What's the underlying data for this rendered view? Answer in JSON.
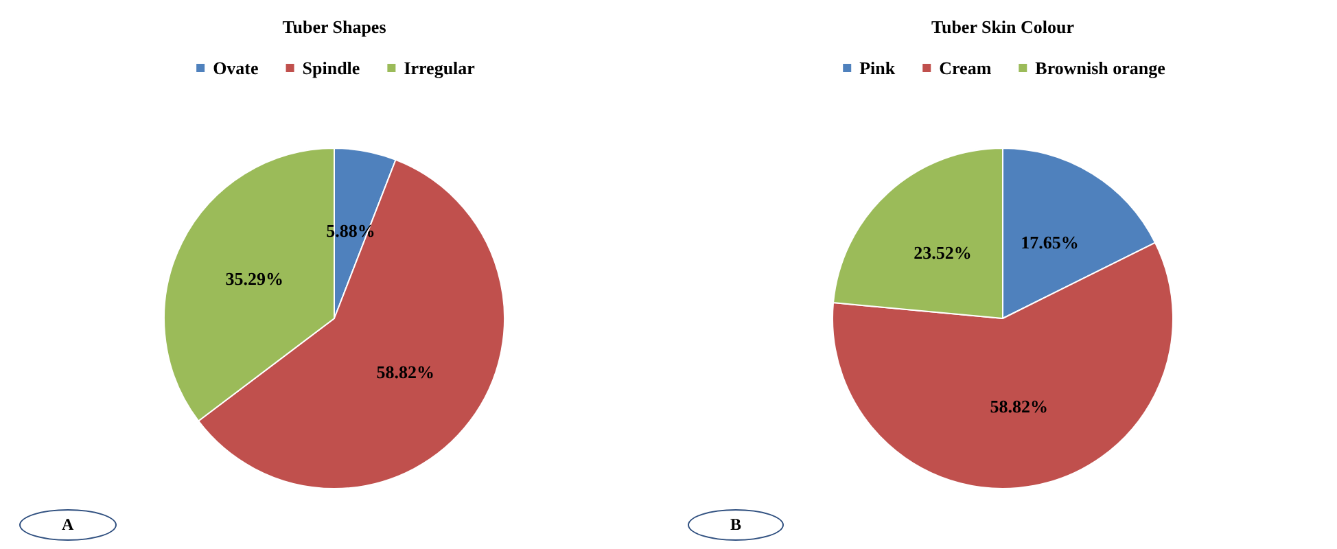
{
  "chart_data": [
    {
      "type": "pie",
      "title": "Tuber Shapes",
      "categories": [
        "Ovate",
        "Spindle",
        "Irregular"
      ],
      "values": [
        5.88,
        58.82,
        35.29
      ],
      "colors": [
        "#4f81bd",
        "#c0504d",
        "#9bbb59"
      ],
      "value_labels": [
        "5.88%",
        "58.82%",
        "35.29%"
      ],
      "legend": "top",
      "annotations": [
        "A"
      ]
    },
    {
      "type": "pie",
      "title": "Tuber Skin Colour",
      "categories": [
        "Pink",
        "Cream",
        "Brownish orange"
      ],
      "values": [
        17.65,
        58.82,
        23.52
      ],
      "colors": [
        "#4f81bd",
        "#c0504d",
        "#9bbb59"
      ],
      "value_labels": [
        "17.65%",
        "58.82%",
        "23.52%"
      ],
      "legend": "top",
      "annotations": [
        "B"
      ]
    }
  ]
}
